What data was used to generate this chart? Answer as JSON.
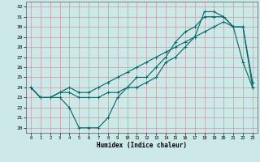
{
  "title": "",
  "xlabel": "Humidex (Indice chaleur)",
  "bg_color": "#cce8e8",
  "grid_color": "#cc9999",
  "line_color": "#006666",
  "xlim": [
    -0.5,
    23.5
  ],
  "ylim": [
    19.5,
    32.5
  ],
  "xticks": [
    0,
    1,
    2,
    3,
    4,
    5,
    6,
    7,
    8,
    9,
    10,
    11,
    12,
    13,
    14,
    15,
    16,
    17,
    18,
    19,
    20,
    21,
    22,
    23
  ],
  "yticks": [
    20,
    21,
    22,
    23,
    24,
    25,
    26,
    27,
    28,
    29,
    30,
    31,
    32
  ],
  "line1_x": [
    0,
    1,
    2,
    3,
    4,
    5,
    6,
    7,
    8,
    9,
    10,
    11,
    12,
    13,
    14,
    15,
    16,
    17,
    18,
    19,
    20,
    21,
    22,
    23
  ],
  "line1_y": [
    24,
    23,
    23,
    23,
    22,
    20,
    20,
    20,
    21,
    23,
    24,
    25,
    25,
    26,
    27,
    28.5,
    29.5,
    30,
    31,
    31,
    31,
    30,
    26.5,
    24
  ],
  "line2_x": [
    0,
    1,
    2,
    3,
    4,
    5,
    6,
    7,
    8,
    9,
    10,
    11,
    12,
    13,
    14,
    15,
    16,
    17,
    18,
    19,
    20,
    21,
    22,
    23
  ],
  "line2_y": [
    24,
    23,
    23,
    23.5,
    24,
    23.5,
    23.5,
    24,
    24.5,
    25,
    25.5,
    26,
    26.5,
    27,
    27.5,
    28,
    28.5,
    29,
    29.5,
    30,
    30.5,
    30,
    30,
    24
  ],
  "line3_x": [
    0,
    1,
    2,
    3,
    4,
    5,
    6,
    7,
    8,
    9,
    10,
    11,
    12,
    13,
    14,
    15,
    16,
    17,
    18,
    19,
    20,
    21,
    22,
    23
  ],
  "line3_y": [
    24,
    23,
    23,
    23.5,
    23.5,
    23,
    23,
    23,
    23.5,
    23.5,
    24,
    24,
    24.5,
    25,
    26.5,
    27,
    28,
    29,
    31.5,
    31.5,
    31,
    30,
    30,
    24.5
  ]
}
